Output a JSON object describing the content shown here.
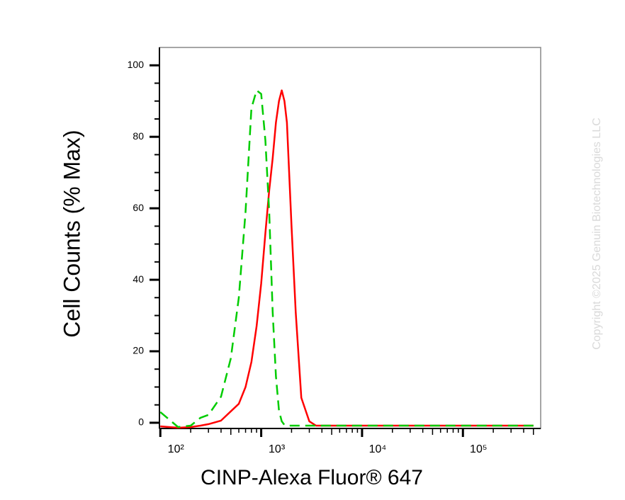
{
  "chart_data": {
    "type": "line",
    "xlabel": "CINP-Alexa Fluor® 647",
    "ylabel": "Cell Counts (% Max)",
    "watermark": "Copyright ©2025 Genuin Biotechnologies LLC",
    "xscale": "log",
    "xlim": [
      98,
      590000
    ],
    "ylim": [
      -1.6,
      105
    ],
    "xticks": [
      {
        "value": 100,
        "label": "10²"
      },
      {
        "value": 1000,
        "label": "10³"
      },
      {
        "value": 10000,
        "label": "10⁴"
      },
      {
        "value": 100000,
        "label": "10⁵"
      }
    ],
    "yticks": [
      0,
      20,
      40,
      60,
      80,
      100
    ],
    "x": [
      100,
      150,
      200,
      250,
      300,
      400,
      500,
      600,
      700,
      800,
      900,
      1000,
      1100,
      1200,
      1300,
      1400,
      1500,
      1600,
      1700,
      1800,
      2000,
      2200,
      2500,
      3000,
      3500,
      5000,
      10000,
      50000,
      100000,
      500000
    ],
    "series": [
      {
        "color": "#ff0000",
        "dash": false,
        "values": [
          -1,
          -1.4,
          -1.2,
          -0.8,
          -0.4,
          0.6,
          3.2,
          5.3,
          10,
          17,
          27,
          39,
          53,
          65,
          74,
          84,
          90,
          93,
          90,
          84,
          55,
          31,
          7,
          0.4,
          -0.8,
          -0.8,
          -0.8,
          -0.8,
          -0.8,
          -0.8
        ]
      },
      {
        "color": "#00cc00",
        "dash": true,
        "values": [
          3,
          -1.2,
          -0.8,
          1.4,
          2.2,
          7.3,
          18,
          35,
          59,
          88,
          93,
          92,
          79,
          59,
          31,
          13,
          3.4,
          0.4,
          -0.6,
          -0.8,
          -0.8,
          -0.8,
          -0.8,
          -0.8,
          -0.8,
          -0.8,
          -0.8,
          -0.8,
          -0.8,
          -0.8
        ]
      }
    ]
  }
}
